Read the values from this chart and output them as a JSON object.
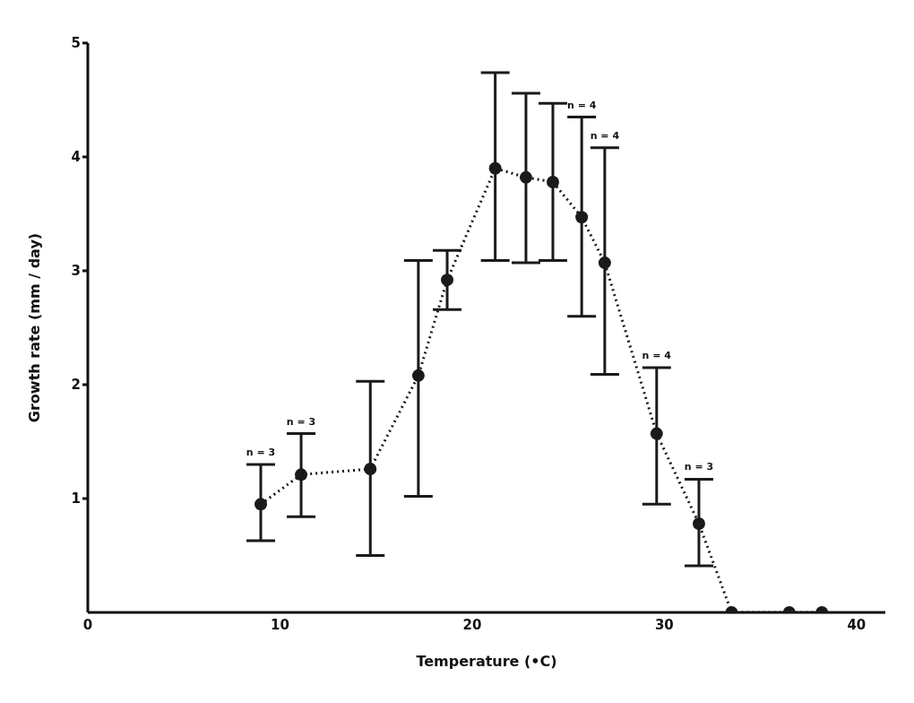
{
  "chart_data": {
    "type": "line",
    "xlabel": "Temperature (•C)",
    "ylabel": "Growth rate (mm / day)",
    "x": [
      9.0,
      11.1,
      14.7,
      17.2,
      18.7,
      21.2,
      22.8,
      24.2,
      25.7,
      26.9,
      29.6,
      31.8,
      33.5,
      36.5,
      38.2
    ],
    "values": [
      0.95,
      1.21,
      1.26,
      2.08,
      2.92,
      3.9,
      3.82,
      3.78,
      3.47,
      3.07,
      1.57,
      0.78,
      0,
      0,
      0
    ],
    "errors": [
      [
        0.63,
        1.3
      ],
      [
        0.84,
        1.57
      ],
      [
        0.5,
        2.03
      ],
      [
        1.02,
        3.09
      ],
      [
        2.66,
        3.18
      ],
      [
        3.09,
        4.74
      ],
      [
        3.07,
        4.56
      ],
      [
        3.09,
        4.47
      ],
      [
        2.6,
        4.35
      ],
      [
        2.09,
        4.08
      ],
      [
        0.95,
        2.15
      ],
      [
        0.41,
        1.17
      ],
      null,
      null,
      null
    ],
    "color": "#1a1a1a",
    "marker": "circle",
    "line_style": "dotted",
    "grid": false,
    "legend": false,
    "xlim": [
      0,
      41.5
    ],
    "xticks": [
      0,
      10,
      20,
      30,
      40
    ],
    "ylim": [
      0,
      5
    ],
    "yticks": [
      1,
      2,
      3,
      4,
      5
    ],
    "annotations": [
      {
        "text": "n = 3",
        "x": 9.0,
        "y": 1.3
      },
      {
        "text": "n = 3",
        "x": 11.1,
        "y": 1.57
      },
      {
        "text": "n = 4",
        "x": 25.7,
        "y": 4.35
      },
      {
        "text": "n = 4",
        "x": 26.9,
        "y": 4.08
      },
      {
        "text": "n = 4",
        "x": 29.6,
        "y": 2.15
      },
      {
        "text": "n = 3",
        "x": 31.8,
        "y": 1.17
      }
    ]
  }
}
